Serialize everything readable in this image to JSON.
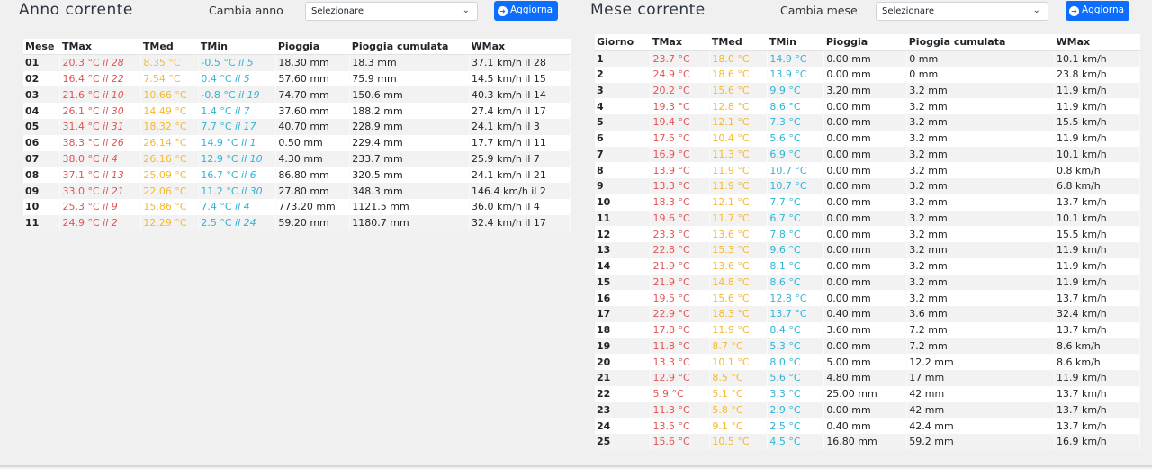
{
  "year": {
    "title": "Anno corrente",
    "change_label": "Cambia anno",
    "select_value": "Selezionare",
    "button_label": "Aggiorna",
    "headers": [
      "Mese",
      "TMax",
      "TMed",
      "TMin",
      "Pioggia",
      "Pioggia cumulata",
      "WMax"
    ],
    "rows": [
      {
        "id": "01",
        "tmax": "20.3 °C",
        "tmax_day": "il 28",
        "tmed": "8.35 °C",
        "tmin": "-0.5 °C",
        "tmin_day": "il 5",
        "rain": "18.30 mm",
        "cum": "18.3 mm",
        "wmax": "37.1 km/h il 28"
      },
      {
        "id": "02",
        "tmax": "16.4 °C",
        "tmax_day": "il 22",
        "tmed": "7.54 °C",
        "tmin": "0.4 °C",
        "tmin_day": "il 5",
        "rain": "57.60 mm",
        "cum": "75.9 mm",
        "wmax": "14.5 km/h il 15"
      },
      {
        "id": "03",
        "tmax": "21.6 °C",
        "tmax_day": "il 10",
        "tmed": "10.66 °C",
        "tmin": "-0.8 °C",
        "tmin_day": "il 19",
        "rain": "74.70 mm",
        "cum": "150.6 mm",
        "wmax": "40.3 km/h il 14"
      },
      {
        "id": "04",
        "tmax": "26.1 °C",
        "tmax_day": "il 30",
        "tmed": "14.49 °C",
        "tmin": "1.4 °C",
        "tmin_day": "il 7",
        "rain": "37.60 mm",
        "cum": "188.2 mm",
        "wmax": "27.4 km/h il 17"
      },
      {
        "id": "05",
        "tmax": "31.4 °C",
        "tmax_day": "il 31",
        "tmed": "18.32 °C",
        "tmin": "7.7 °C",
        "tmin_day": "il 17",
        "rain": "40.70 mm",
        "cum": "228.9 mm",
        "wmax": "24.1 km/h il 3"
      },
      {
        "id": "06",
        "tmax": "38.3 °C",
        "tmax_day": "il 26",
        "tmed": "26.14 °C",
        "tmin": "14.9 °C",
        "tmin_day": "il 1",
        "rain": "0.50 mm",
        "cum": "229.4 mm",
        "wmax": "17.7 km/h il 11"
      },
      {
        "id": "07",
        "tmax": "38.0 °C",
        "tmax_day": "il 4",
        "tmed": "26.16 °C",
        "tmin": "12.9 °C",
        "tmin_day": "il 10",
        "rain": "4.30 mm",
        "cum": "233.7 mm",
        "wmax": "25.9 km/h il 7"
      },
      {
        "id": "08",
        "tmax": "37.1 °C",
        "tmax_day": "il 13",
        "tmed": "25.09 °C",
        "tmin": "16.7 °C",
        "tmin_day": "il 6",
        "rain": "86.80 mm",
        "cum": "320.5 mm",
        "wmax": "24.1 km/h il 21"
      },
      {
        "id": "09",
        "tmax": "33.0 °C",
        "tmax_day": "il 21",
        "tmed": "22.06 °C",
        "tmin": "11.2 °C",
        "tmin_day": "il 30",
        "rain": "27.80 mm",
        "cum": "348.3 mm",
        "wmax": "146.4 km/h il 2"
      },
      {
        "id": "10",
        "tmax": "25.3 °C",
        "tmax_day": "il 9",
        "tmed": "15.86 °C",
        "tmin": "7.4 °C",
        "tmin_day": "il 4",
        "rain": "773.20 mm",
        "cum": "1121.5 mm",
        "wmax": "36.0 km/h il 4"
      },
      {
        "id": "11",
        "tmax": "24.9 °C",
        "tmax_day": "il 2",
        "tmed": "12.29 °C",
        "tmin": "2.5 °C",
        "tmin_day": "il 24",
        "rain": "59.20 mm",
        "cum": "1180.7 mm",
        "wmax": "32.4 km/h il 17"
      }
    ]
  },
  "month": {
    "title": "Mese corrente",
    "change_label": "Cambia mese",
    "select_value": "Selezionare",
    "button_label": "Aggiorna",
    "headers": [
      "Giorno",
      "TMax",
      "TMed",
      "TMin",
      "Pioggia",
      "Pioggia cumulata",
      "WMax"
    ],
    "rows": [
      {
        "id": "1",
        "tmax": "23.7 °C",
        "tmed": "18.0 °C",
        "tmin": "14.9 °C",
        "rain": "0.00 mm",
        "cum": "0 mm",
        "wmax": "10.1 km/h"
      },
      {
        "id": "2",
        "tmax": "24.9 °C",
        "tmed": "18.6 °C",
        "tmin": "13.9 °C",
        "rain": "0.00 mm",
        "cum": "0 mm",
        "wmax": "23.8 km/h"
      },
      {
        "id": "3",
        "tmax": "20.2 °C",
        "tmed": "15.6 °C",
        "tmin": "9.9 °C",
        "rain": "3.20 mm",
        "cum": "3.2 mm",
        "wmax": "11.9 km/h"
      },
      {
        "id": "4",
        "tmax": "19.3 °C",
        "tmed": "12.8 °C",
        "tmin": "8.6 °C",
        "rain": "0.00 mm",
        "cum": "3.2 mm",
        "wmax": "11.9 km/h"
      },
      {
        "id": "5",
        "tmax": "19.4 °C",
        "tmed": "12.1 °C",
        "tmin": "7.3 °C",
        "rain": "0.00 mm",
        "cum": "3.2 mm",
        "wmax": "15.5 km/h"
      },
      {
        "id": "6",
        "tmax": "17.5 °C",
        "tmed": "10.4 °C",
        "tmin": "5.6 °C",
        "rain": "0.00 mm",
        "cum": "3.2 mm",
        "wmax": "11.9 km/h"
      },
      {
        "id": "7",
        "tmax": "16.9 °C",
        "tmed": "11.3 °C",
        "tmin": "6.9 °C",
        "rain": "0.00 mm",
        "cum": "3.2 mm",
        "wmax": "10.1 km/h"
      },
      {
        "id": "8",
        "tmax": "13.9 °C",
        "tmed": "11.9 °C",
        "tmin": "10.7 °C",
        "rain": "0.00 mm",
        "cum": "3.2 mm",
        "wmax": "0.8 km/h"
      },
      {
        "id": "9",
        "tmax": "13.3 °C",
        "tmed": "11.9 °C",
        "tmin": "10.7 °C",
        "rain": "0.00 mm",
        "cum": "3.2 mm",
        "wmax": "6.8 km/h"
      },
      {
        "id": "10",
        "tmax": "18.3 °C",
        "tmed": "12.1 °C",
        "tmin": "7.7 °C",
        "rain": "0.00 mm",
        "cum": "3.2 mm",
        "wmax": "13.7 km/h"
      },
      {
        "id": "11",
        "tmax": "19.6 °C",
        "tmed": "11.7 °C",
        "tmin": "6.7 °C",
        "rain": "0.00 mm",
        "cum": "3.2 mm",
        "wmax": "10.1 km/h"
      },
      {
        "id": "12",
        "tmax": "23.3 °C",
        "tmed": "13.6 °C",
        "tmin": "7.8 °C",
        "rain": "0.00 mm",
        "cum": "3.2 mm",
        "wmax": "15.5 km/h"
      },
      {
        "id": "13",
        "tmax": "22.8 °C",
        "tmed": "15.3 °C",
        "tmin": "9.6 °C",
        "rain": "0.00 mm",
        "cum": "3.2 mm",
        "wmax": "11.9 km/h"
      },
      {
        "id": "14",
        "tmax": "21.9 °C",
        "tmed": "13.6 °C",
        "tmin": "8.1 °C",
        "rain": "0.00 mm",
        "cum": "3.2 mm",
        "wmax": "11.9 km/h"
      },
      {
        "id": "15",
        "tmax": "21.9 °C",
        "tmed": "14.8 °C",
        "tmin": "8.6 °C",
        "rain": "0.00 mm",
        "cum": "3.2 mm",
        "wmax": "11.9 km/h"
      },
      {
        "id": "16",
        "tmax": "19.5 °C",
        "tmed": "15.6 °C",
        "tmin": "12.8 °C",
        "rain": "0.00 mm",
        "cum": "3.2 mm",
        "wmax": "13.7 km/h"
      },
      {
        "id": "17",
        "tmax": "22.9 °C",
        "tmed": "18.3 °C",
        "tmin": "13.7 °C",
        "rain": "0.40 mm",
        "cum": "3.6 mm",
        "wmax": "32.4 km/h"
      },
      {
        "id": "18",
        "tmax": "17.8 °C",
        "tmed": "11.9 °C",
        "tmin": "8.4 °C",
        "rain": "3.60 mm",
        "cum": "7.2 mm",
        "wmax": "13.7 km/h"
      },
      {
        "id": "19",
        "tmax": "11.8 °C",
        "tmed": "8.7 °C",
        "tmin": "5.3 °C",
        "rain": "0.00 mm",
        "cum": "7.2 mm",
        "wmax": "8.6 km/h"
      },
      {
        "id": "20",
        "tmax": "13.3 °C",
        "tmed": "10.1 °C",
        "tmin": "8.0 °C",
        "rain": "5.00 mm",
        "cum": "12.2 mm",
        "wmax": "8.6 km/h"
      },
      {
        "id": "21",
        "tmax": "12.9 °C",
        "tmed": "8.5 °C",
        "tmin": "5.6 °C",
        "rain": "4.80 mm",
        "cum": "17 mm",
        "wmax": "11.9 km/h"
      },
      {
        "id": "22",
        "tmax": "5.9 °C",
        "tmed": "5.1 °C",
        "tmin": "3.3 °C",
        "rain": "25.00 mm",
        "cum": "42 mm",
        "wmax": "13.7 km/h"
      },
      {
        "id": "23",
        "tmax": "11.3 °C",
        "tmed": "5.8 °C",
        "tmin": "2.9 °C",
        "rain": "0.00 mm",
        "cum": "42 mm",
        "wmax": "13.7 km/h"
      },
      {
        "id": "24",
        "tmax": "13.5 °C",
        "tmed": "9.1 °C",
        "tmin": "2.5 °C",
        "rain": "0.40 mm",
        "cum": "42.4 mm",
        "wmax": "13.7 km/h"
      },
      {
        "id": "25",
        "tmax": "15.6 °C",
        "tmed": "10.5 °C",
        "tmin": "4.5 °C",
        "rain": "16.80 mm",
        "cum": "59.2 mm",
        "wmax": "16.9 km/h"
      }
    ]
  }
}
